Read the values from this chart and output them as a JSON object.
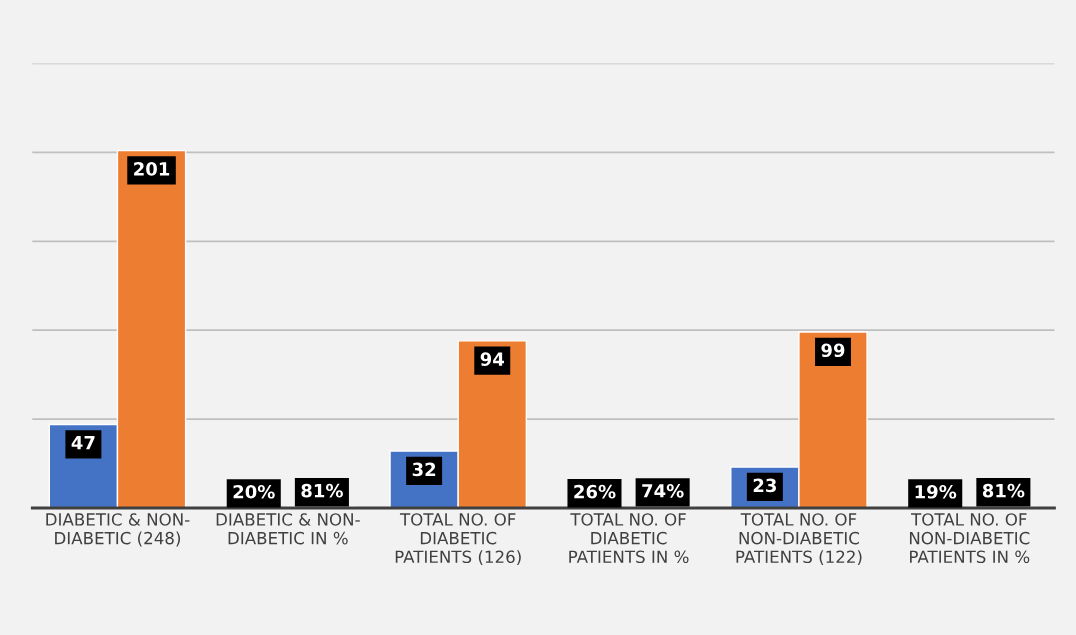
{
  "chart_data": {
    "type": "bar",
    "categories": [
      "DIABETIC & NON-\nDIABETIC (248)",
      "DIABETIC & NON-\nDIABETIC IN %",
      "TOTAL NO. OF\nDIABETIC\nPATIENTS (126)",
      "TOTAL NO. OF\nDIABETIC\nPATIENTS IN %",
      "TOTAL NO. OF\nNON-DIABETIC\nPATIENTS (122)",
      "TOTAL NO. OF\nNON-DIABETIC\nPATIENTS IN %"
    ],
    "series": [
      {
        "color": "#4472c4",
        "values": [
          47,
          0.2,
          32,
          0.26,
          23,
          0.19
        ],
        "value_labels": [
          "47",
          "20%",
          "32",
          "26%",
          "23",
          "19%"
        ]
      },
      {
        "color": "#ed7d31",
        "values": [
          201,
          0.81,
          94,
          0.74,
          99,
          0.81
        ],
        "value_labels": [
          "201",
          "81%",
          "94",
          "74%",
          "99",
          "81%"
        ]
      }
    ],
    "ylim": [
      0,
      250
    ],
    "yticks": [
      {
        "value": 0,
        "label": null
      },
      {
        "value": 50,
        "label": null
      },
      {
        "value": 100,
        "label": null
      },
      {
        "value": 150,
        "label": null
      },
      {
        "value": 200,
        "label": null
      },
      {
        "value": 250,
        "label": null
      }
    ],
    "tick_labels": "x",
    "grid": "y"
  }
}
